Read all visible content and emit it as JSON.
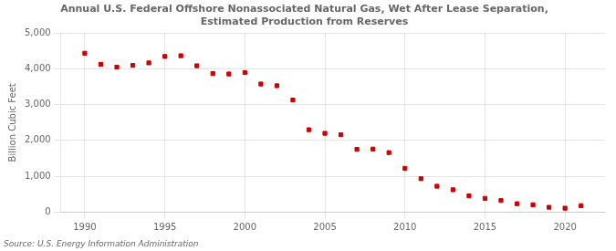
{
  "chart_data": {
    "type": "scatter",
    "title": "Annual U.S. Federal Offshore Nonassociated Natural Gas, Wet After Lease Separation,\nEstimated Production from Reserves",
    "ylabel": "Billion Cubic Feet",
    "annotations": [
      "Source: U.S. Energy Information Administration"
    ],
    "x": [
      1990,
      1991,
      1992,
      1993,
      1994,
      1995,
      1996,
      1997,
      1998,
      1999,
      2000,
      2001,
      2002,
      2003,
      2004,
      2005,
      2006,
      2007,
      2008,
      2009,
      2010,
      2011,
      2012,
      2013,
      2014,
      2015,
      2016,
      2017,
      2018,
      2019,
      2020,
      2021
    ],
    "values": [
      4440,
      4130,
      4050,
      4100,
      4170,
      4350,
      4370,
      4090,
      3870,
      3860,
      3900,
      3580,
      3530,
      3130,
      2300,
      2200,
      2160,
      1750,
      1760,
      1660,
      1220,
      930,
      720,
      620,
      450,
      380,
      320,
      230,
      200,
      130,
      105,
      175
    ],
    "color": "#CC0000",
    "marker": "square",
    "xlim": [
      1988.5,
      2022.5
    ],
    "ylim": [
      0,
      5000
    ],
    "xticks": [
      1990,
      1995,
      2000,
      2005,
      2010,
      2015,
      2020
    ],
    "yticks": [
      0,
      {
        "value": 1000,
        "label": "1,000"
      },
      {
        "value": 2000,
        "label": "2,000"
      },
      {
        "value": 3000,
        "label": "3,000"
      },
      {
        "value": 4000,
        "label": "4,000"
      },
      {
        "value": 5000,
        "label": "5,000"
      }
    ],
    "grid": true
  }
}
